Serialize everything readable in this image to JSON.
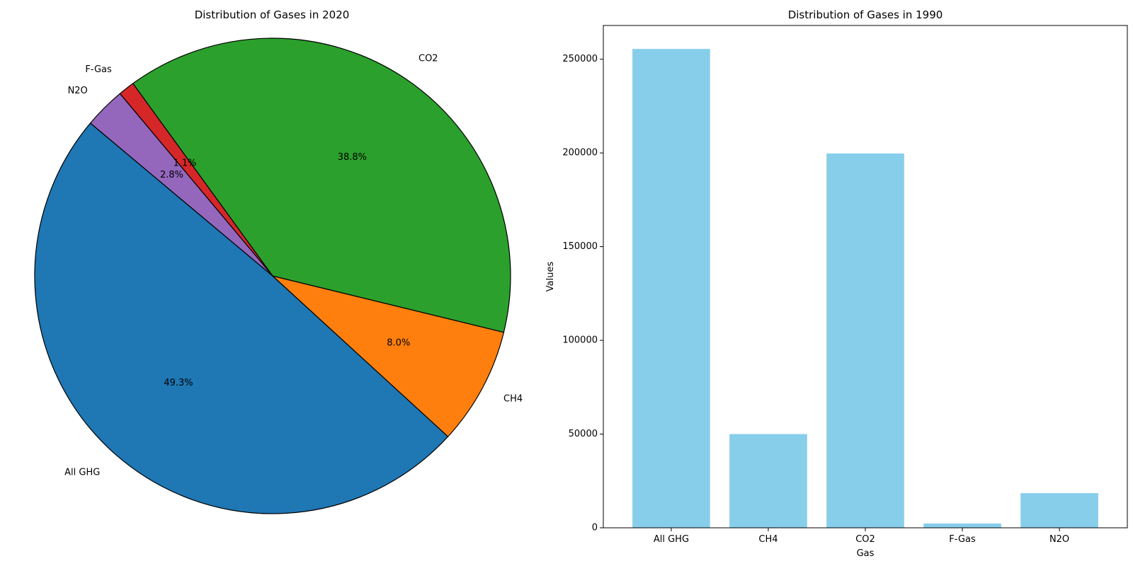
{
  "chart_data": [
    {
      "type": "pie",
      "title": "Distribution of Gases in 2020",
      "categories": [
        "All GHG",
        "CH4",
        "CO2",
        "F-Gas",
        "N2O"
      ],
      "values": [
        49.3,
        8.0,
        38.8,
        1.1,
        2.8
      ],
      "pct_labels": [
        "49.3%",
        "8.0%",
        "38.8%",
        "1.1%",
        "2.8%"
      ],
      "colors": [
        "#1f77b4",
        "#ff7f0e",
        "#2ca02c",
        "#d62728",
        "#9467bd"
      ],
      "start_angle": 140,
      "edge_color": "#000000"
    },
    {
      "type": "bar",
      "title": "Distribution of Gases in 1990",
      "categories": [
        "All GHG",
        "CH4",
        "CO2",
        "F-Gas",
        "N2O"
      ],
      "values": [
        255500,
        50000,
        199700,
        2300,
        18500
      ],
      "xlabel": "Gas",
      "ylabel": "Values",
      "ylim": [
        0,
        268000
      ],
      "yticks": [
        0,
        50000,
        100000,
        150000,
        200000,
        250000
      ],
      "ytick_labels": [
        "0",
        "50000",
        "100000",
        "150000",
        "200000",
        "250000"
      ],
      "bar_color": "#87ceeb",
      "grid": false
    }
  ]
}
